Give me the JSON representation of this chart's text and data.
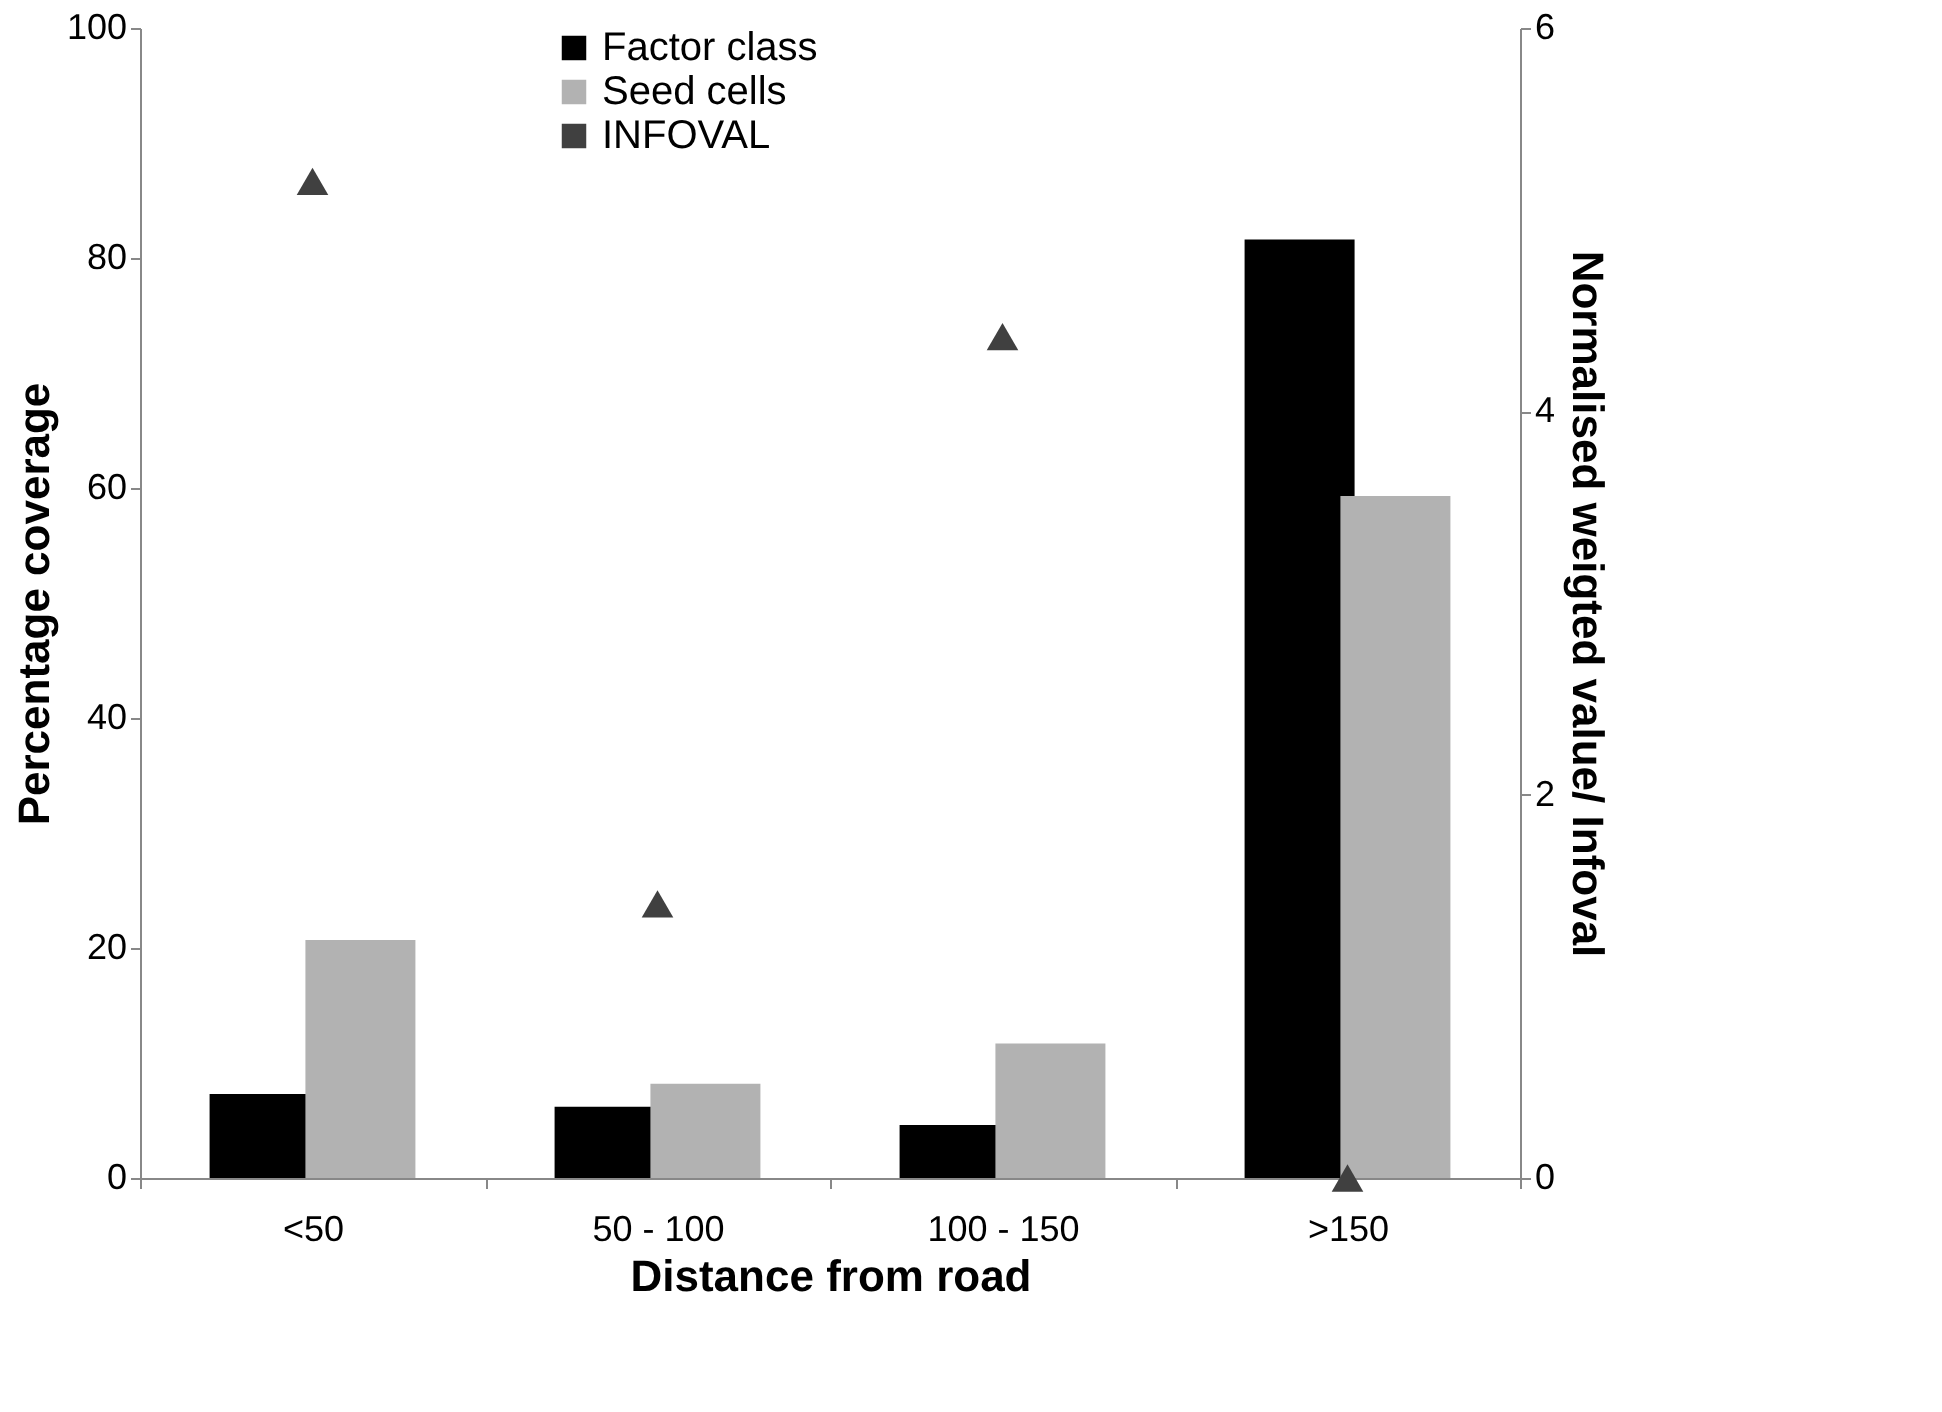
{
  "chart_data": {
    "type": "bar",
    "xlabel": "Distance from  road",
    "ylabel": "Percentage coverage",
    "y2label": "Normalised weigted value/ Infoval",
    "categories": [
      "<50",
      "50 - 100",
      "100 - 150",
      ">150"
    ],
    "series": [
      {
        "name": "Factor class",
        "color": "#000000",
        "values": [
          7.3,
          6.2,
          4.6,
          81.6
        ]
      },
      {
        "name": "Seed cells",
        "color": "#b2b2b2",
        "values": [
          20.7,
          8.2,
          11.7,
          59.3
        ]
      },
      {
        "name": "INFOVAL",
        "type": "scatter",
        "axis": "y2",
        "marker": "triangle",
        "color": "#404040",
        "values": [
          5.2,
          1.43,
          4.39,
          0
        ]
      }
    ],
    "ylim": [
      0,
      100
    ],
    "yticks": [
      0,
      20,
      40,
      60,
      80,
      100
    ],
    "y2lim": [
      0,
      6
    ],
    "y2ticks": [
      0,
      2,
      4,
      6
    ],
    "grid": false,
    "legend": "top"
  }
}
